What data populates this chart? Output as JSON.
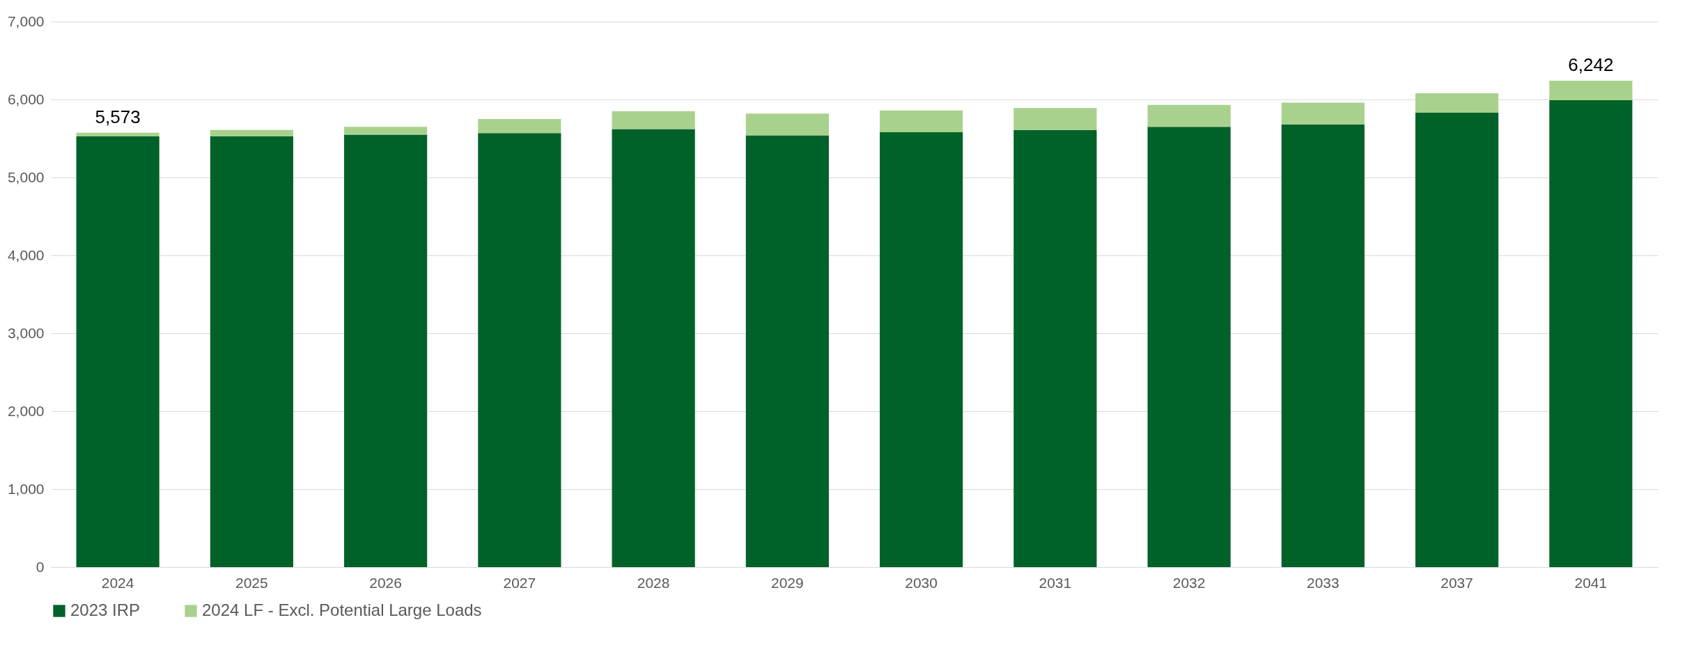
{
  "chart_data": {
    "type": "bar",
    "stacked": true,
    "categories": [
      "2024",
      "2025",
      "2026",
      "2027",
      "2028",
      "2029",
      "2030",
      "2031",
      "2032",
      "2033",
      "2037",
      "2041"
    ],
    "series": [
      {
        "name": "2023 IRP",
        "color": "#006228",
        "values": [
          5530,
          5530,
          5550,
          5570,
          5620,
          5540,
          5580,
          5610,
          5650,
          5680,
          5830,
          5990
        ]
      },
      {
        "name": "2024 LF - Excl. Potential Large Loads",
        "color": "#a9d18e",
        "values": [
          43,
          80,
          100,
          180,
          230,
          280,
          280,
          280,
          280,
          280,
          250,
          252
        ]
      }
    ],
    "totals": [
      "5,573",
      null,
      null,
      null,
      null,
      null,
      null,
      null,
      null,
      null,
      null,
      "6,242"
    ],
    "ylim": [
      0,
      7000
    ],
    "yticks": [
      0,
      {
        "value": 1000,
        "label": "1,000"
      },
      {
        "value": 2000,
        "label": "2,000"
      },
      {
        "value": 3000,
        "label": "3,000"
      },
      {
        "value": 4000,
        "label": "4,000"
      },
      {
        "value": 5000,
        "label": "5,000"
      },
      {
        "value": 6000,
        "label": "6,000"
      },
      {
        "value": 7000,
        "label": "7,000"
      }
    ],
    "grid": "y",
    "legend": "bottom"
  }
}
